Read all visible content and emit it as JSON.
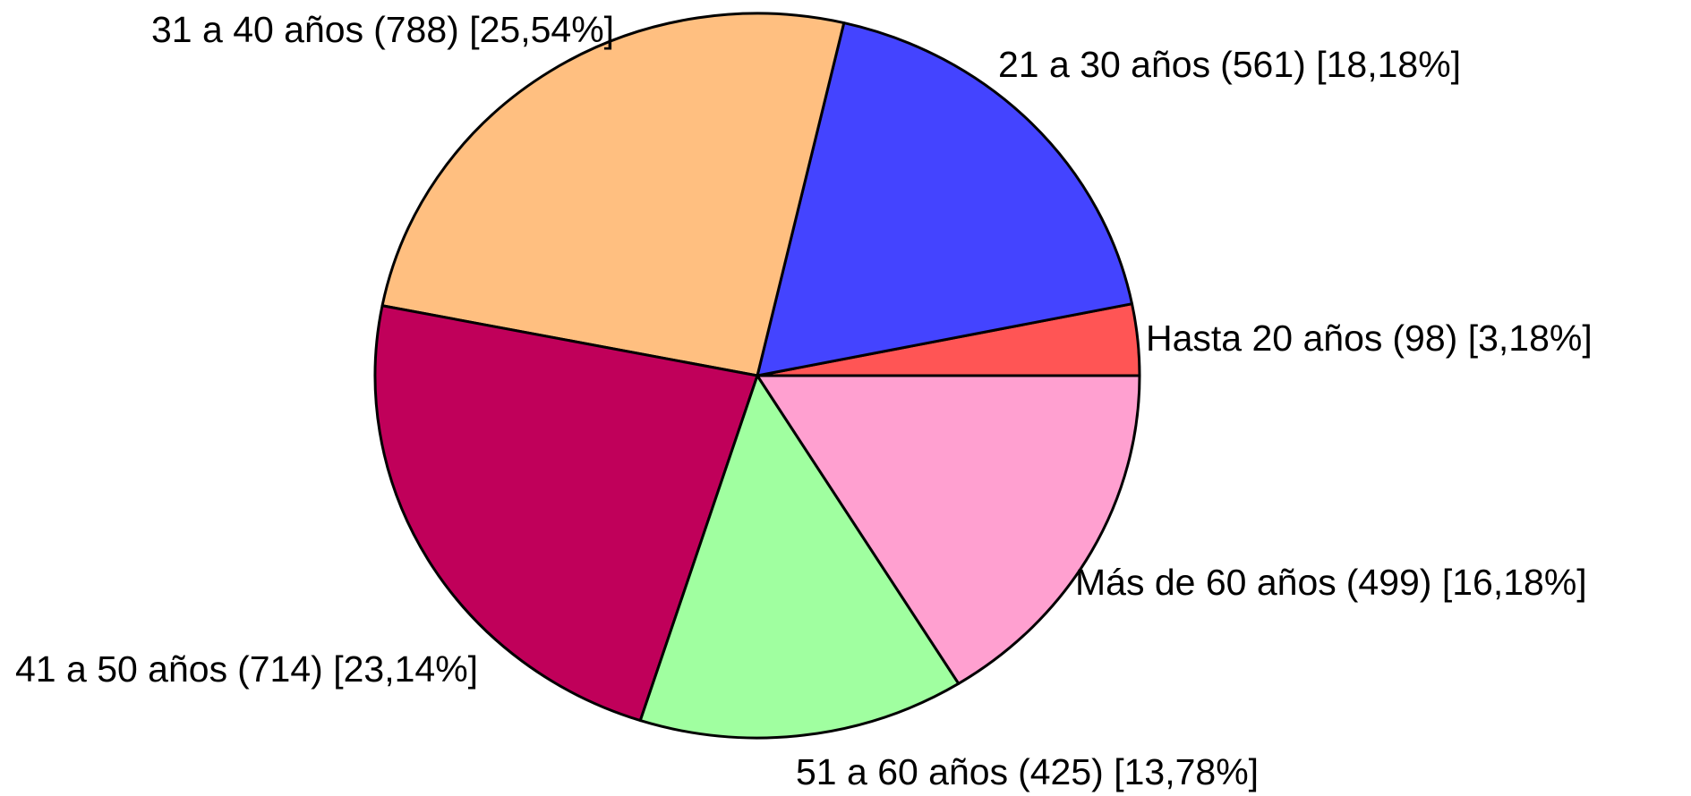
{
  "chart_data": {
    "type": "pie",
    "categories": [
      "Hasta 20 años",
      "21 a 30 años",
      "31 a 40 años",
      "41 a 50 años",
      "51 a 60 años",
      "Más de 60 años"
    ],
    "values": [
      98,
      561,
      788,
      714,
      425,
      499
    ],
    "value_labels": [
      "(98) [3,18%]",
      "(561) [18,18%]",
      "(788) [25,54%]",
      "(714) [23,14%]",
      "(425) [13,78%]",
      "(499) [16,18%]"
    ],
    "colors": [
      "#ff5555",
      "#4444ff",
      "#ffbf80",
      "#c0005a",
      "#a0ffa0",
      "#ffa0d0"
    ]
  }
}
